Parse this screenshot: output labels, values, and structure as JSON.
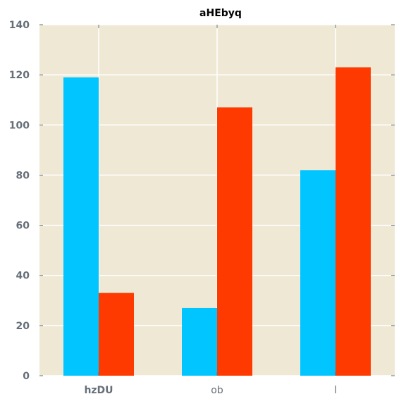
{
  "chart_data": {
    "type": "bar",
    "title": "aHEbyq",
    "xlabel": "",
    "ylabel": "",
    "categories": [
      "hzDU",
      "ob",
      "l"
    ],
    "series": [
      {
        "values": [
          119,
          27,
          82
        ],
        "color": "#00c5ff"
      },
      {
        "values": [
          33,
          107,
          123
        ],
        "color": "#ff3a00"
      }
    ],
    "ylim": [
      0,
      140
    ],
    "yticks": [
      0,
      20,
      40,
      60,
      80,
      100,
      120,
      140
    ],
    "grid": true,
    "legend": "none",
    "colors": {
      "plot_background": "#efe8d5",
      "grid": "#ffffff",
      "tick_text": "#666f78",
      "tick_mark": "#666f78"
    }
  }
}
